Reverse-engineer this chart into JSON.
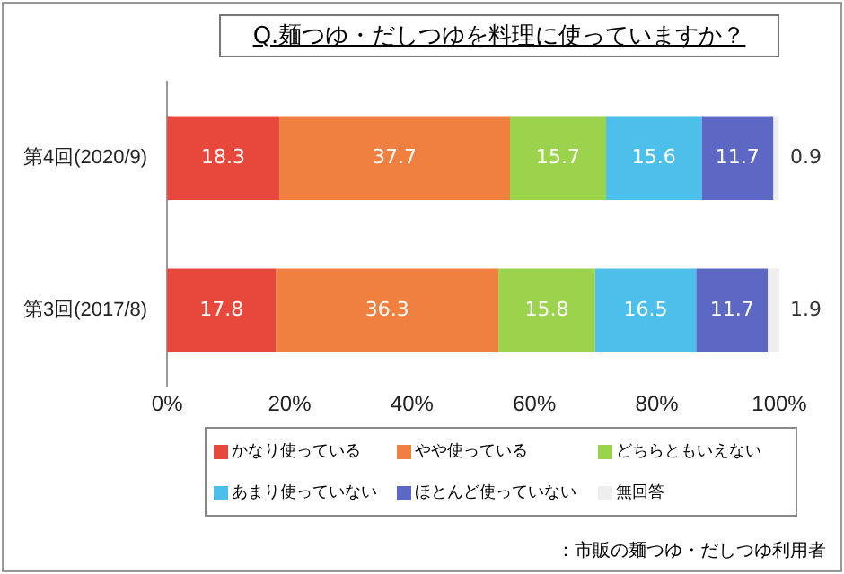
{
  "chart_data": {
    "type": "bar",
    "orientation": "horizontal",
    "stacked": true,
    "title": "Q.麺つゆ・だしつゆを料理に使っていますか？",
    "categories": [
      "第4回(2020/9)",
      "第3回(2017/8)"
    ],
    "series": [
      {
        "name": "かなり使っている",
        "color": "#e8473c",
        "values": [
          18.3,
          17.8
        ]
      },
      {
        "name": "やや使っている",
        "color": "#f08040",
        "values": [
          37.7,
          36.3
        ]
      },
      {
        "name": "どちらともいえない",
        "color": "#9bd44c",
        "values": [
          15.7,
          15.8
        ]
      },
      {
        "name": "あまり使っていない",
        "color": "#4cc0ea",
        "values": [
          15.6,
          16.5
        ]
      },
      {
        "name": "ほとんど使っていない",
        "color": "#5c68c4",
        "values": [
          11.7,
          11.7
        ]
      },
      {
        "name": "無回答",
        "color": "#eeeeee",
        "values": [
          0.9,
          1.9
        ]
      }
    ],
    "xlim": [
      0,
      100
    ],
    "xticks": [
      {
        "value": 0,
        "label": "0%"
      },
      {
        "value": 20,
        "label": "20%"
      },
      {
        "value": 40,
        "label": "40%"
      },
      {
        "value": 60,
        "label": "60%"
      },
      {
        "value": 80,
        "label": "80%"
      },
      {
        "value": 100,
        "label": "100%"
      }
    ],
    "data_labels": true,
    "legend": "bottom",
    "grid": false,
    "annotations": [
      "：市販の麺つゆ・だしつゆ利用者"
    ]
  }
}
